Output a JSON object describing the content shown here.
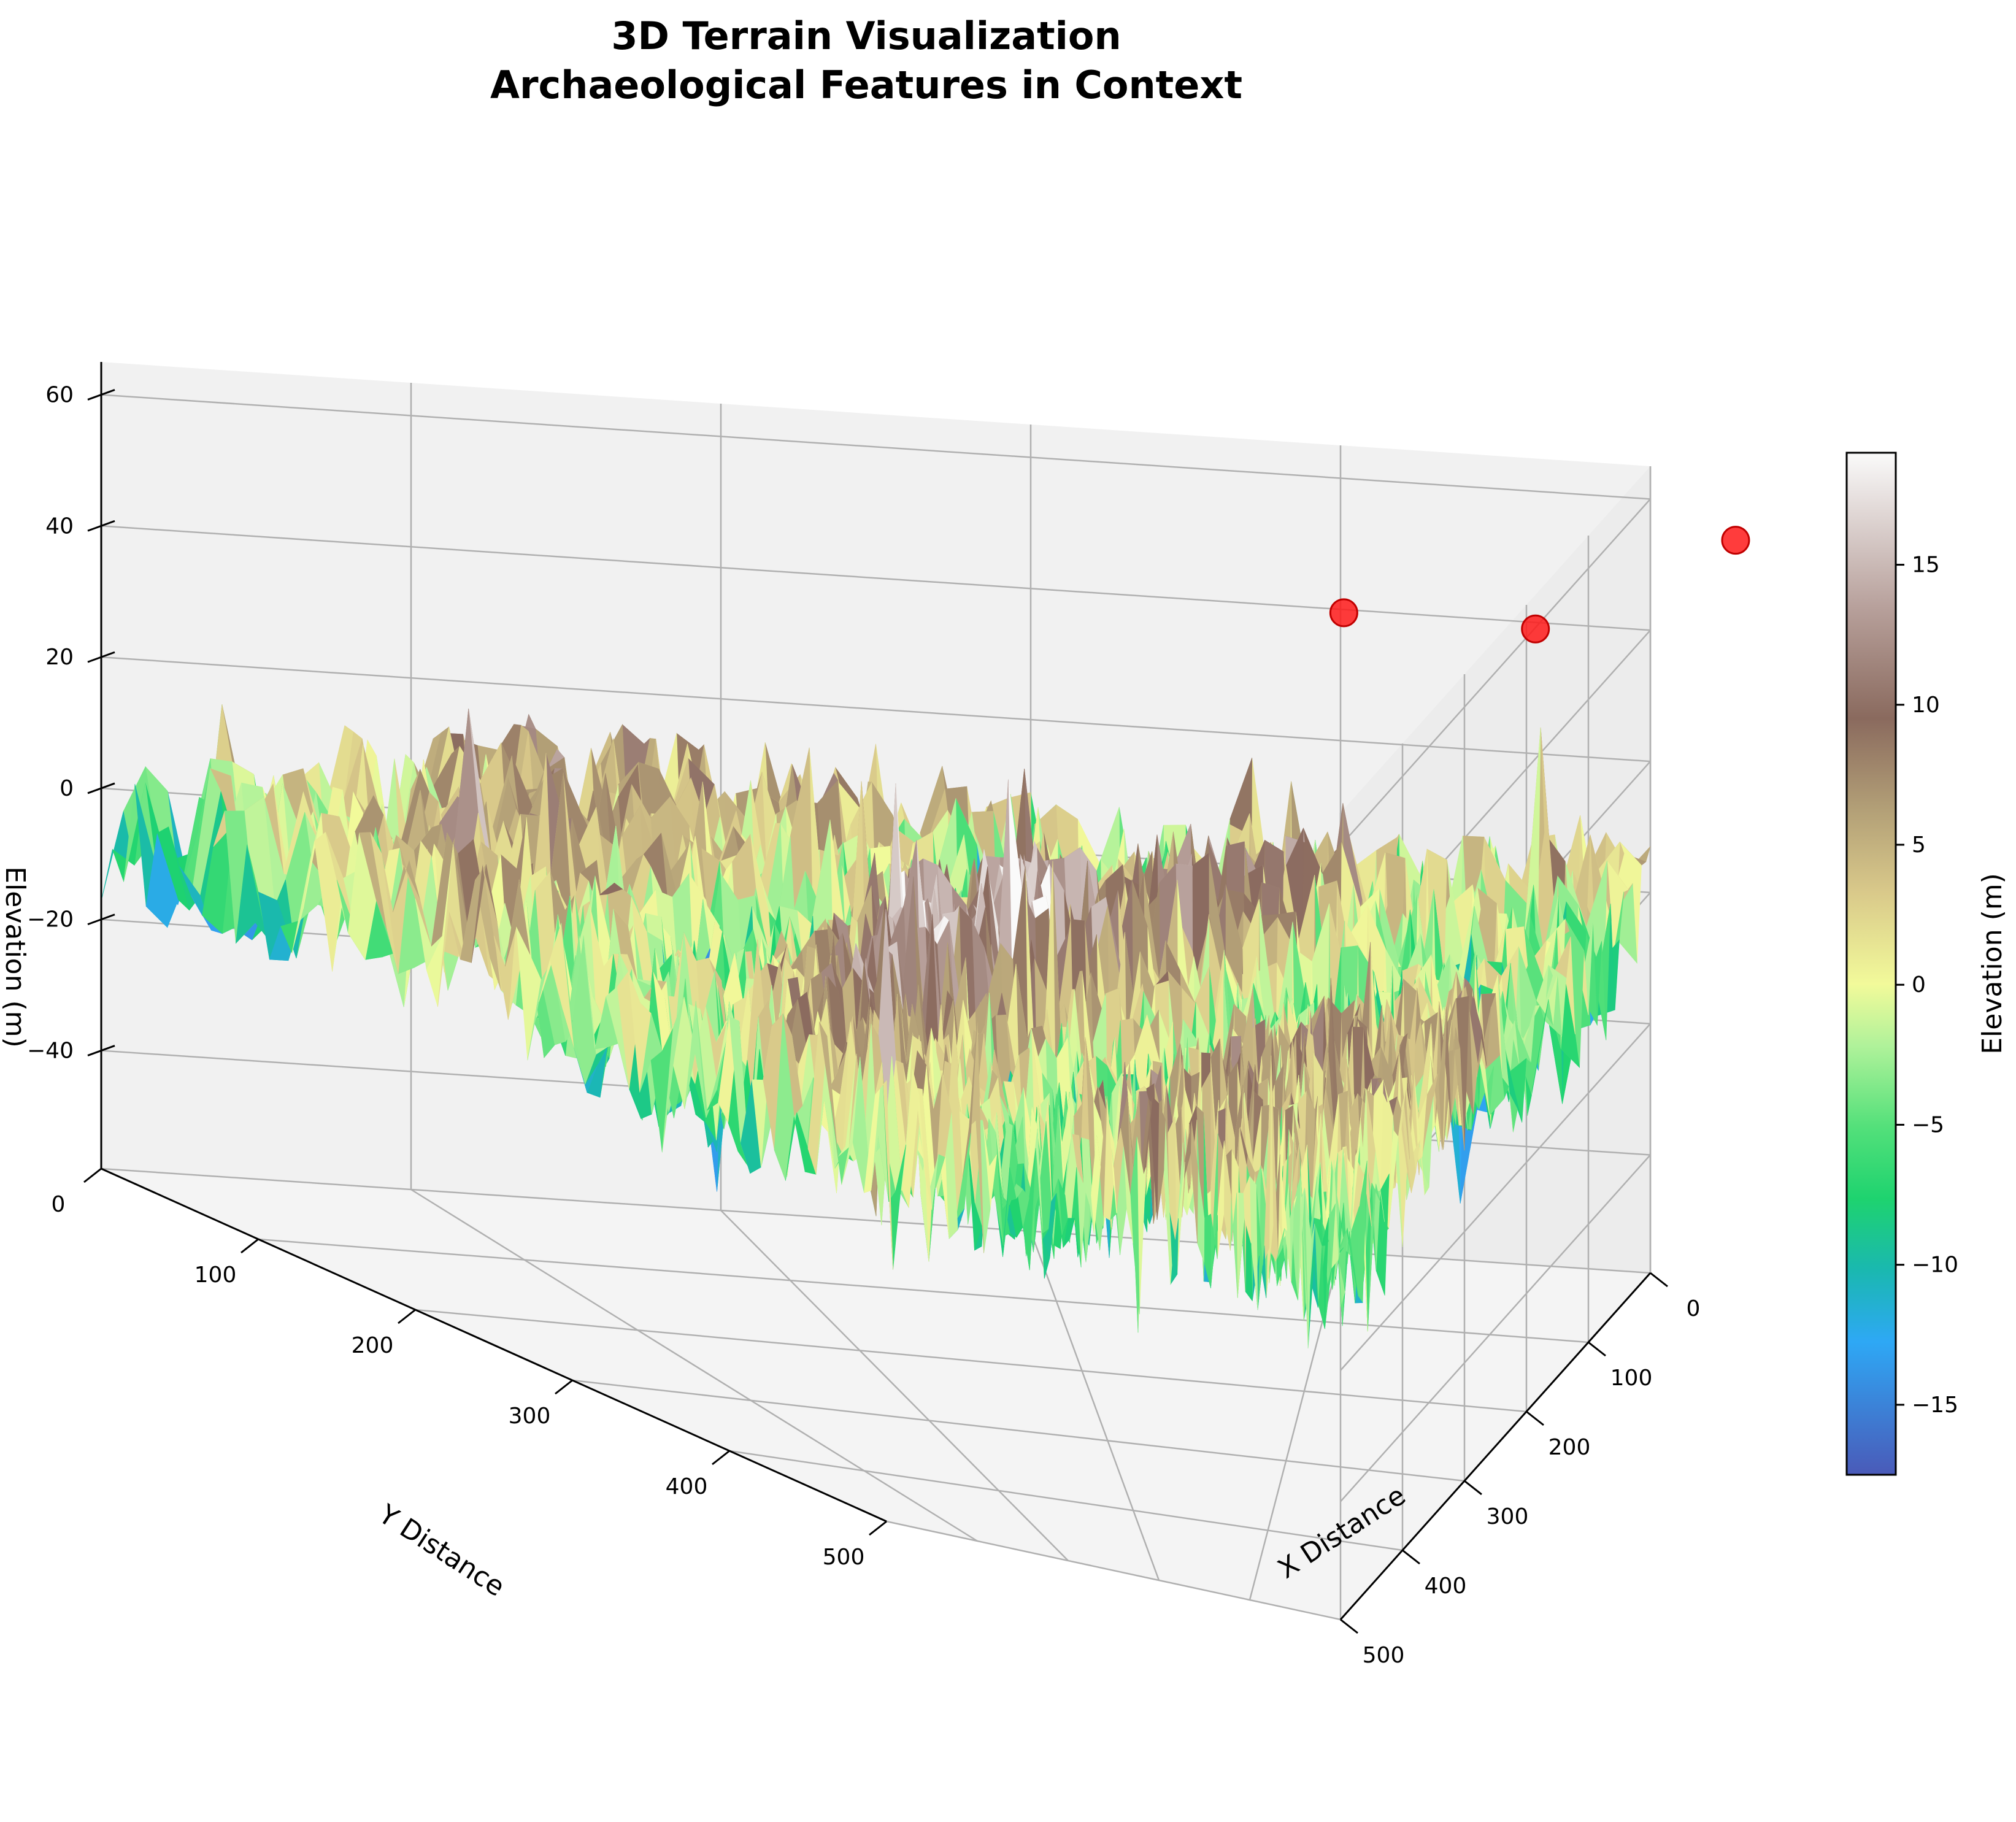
{
  "chart_data": {
    "type": "surface3d",
    "title_lines": [
      "3D Terrain Visualization",
      "Archaeological Features in Context"
    ],
    "xlabel": "X Distance",
    "ylabel": "Y Distance",
    "zlabel": "Elevation (m)",
    "xlim": [
      0,
      500
    ],
    "ylim": [
      0,
      500
    ],
    "zlim": [
      -58,
      65
    ],
    "x_ticks": [
      0,
      100,
      200,
      300,
      400,
      500
    ],
    "y_ticks": [
      0,
      100,
      200,
      300,
      400,
      500
    ],
    "z_ticks": [
      -40,
      -20,
      0,
      20,
      40,
      60
    ],
    "z_tick_labels": [
      "−40",
      "−20",
      "0",
      "20",
      "40",
      "60"
    ],
    "grid": true,
    "surface": {
      "description_of_shape": "noisy terrain, ridge along x≈y diagonal",
      "grid_x": [
        0,
        50,
        100,
        150,
        200,
        250,
        300,
        350,
        400,
        450,
        500
      ],
      "grid_y": [
        0,
        50,
        100,
        150,
        200,
        250,
        300,
        350,
        400,
        450,
        500
      ],
      "z": [
        [
          3,
          -4,
          -6,
          -5,
          -2,
          2,
          5,
          4,
          1,
          -3,
          -6
        ],
        [
          -4,
          2,
          -3,
          -6,
          -4,
          0,
          3,
          6,
          2,
          -2,
          -5
        ],
        [
          -6,
          -3,
          6,
          1,
          -5,
          -4,
          0,
          3,
          5,
          0,
          -4
        ],
        [
          -5,
          -6,
          1,
          10,
          4,
          -3,
          -6,
          -2,
          3,
          4,
          -1
        ],
        [
          -2,
          -4,
          -5,
          4,
          13,
          7,
          -2,
          -7,
          -3,
          2,
          3
        ],
        [
          2,
          0,
          -4,
          -3,
          7,
          15,
          8,
          -2,
          -6,
          -1,
          2
        ],
        [
          5,
          3,
          0,
          -6,
          -2,
          8,
          13,
          6,
          -3,
          -5,
          -1
        ],
        [
          4,
          6,
          3,
          -2,
          -7,
          -2,
          6,
          11,
          4,
          -4,
          -5
        ],
        [
          1,
          2,
          5,
          3,
          -3,
          -6,
          -3,
          4,
          8,
          2,
          -3
        ],
        [
          -3,
          -2,
          0,
          4,
          2,
          -1,
          -5,
          -4,
          2,
          5,
          1
        ],
        [
          -6,
          -5,
          -4,
          -1,
          3,
          2,
          -1,
          -5,
          -3,
          1,
          4
        ]
      ]
    },
    "features": [
      {
        "x": 60,
        "y": 95,
        "z": 46
      },
      {
        "x": 45,
        "y": 30,
        "z": 44
      },
      {
        "x": 30,
        "y": -35,
        "z": 58
      }
    ],
    "feature_color": "#ff1a1a",
    "colorbar": {
      "label": "Elevation (m)",
      "range": [
        -17.5,
        19
      ],
      "ticks": [
        -15,
        -10,
        -5,
        0,
        5,
        10,
        15
      ],
      "tick_labels": [
        "−15",
        "−10",
        "−5",
        "0",
        "5",
        "10",
        "15"
      ],
      "colormap": "terrain"
    }
  }
}
